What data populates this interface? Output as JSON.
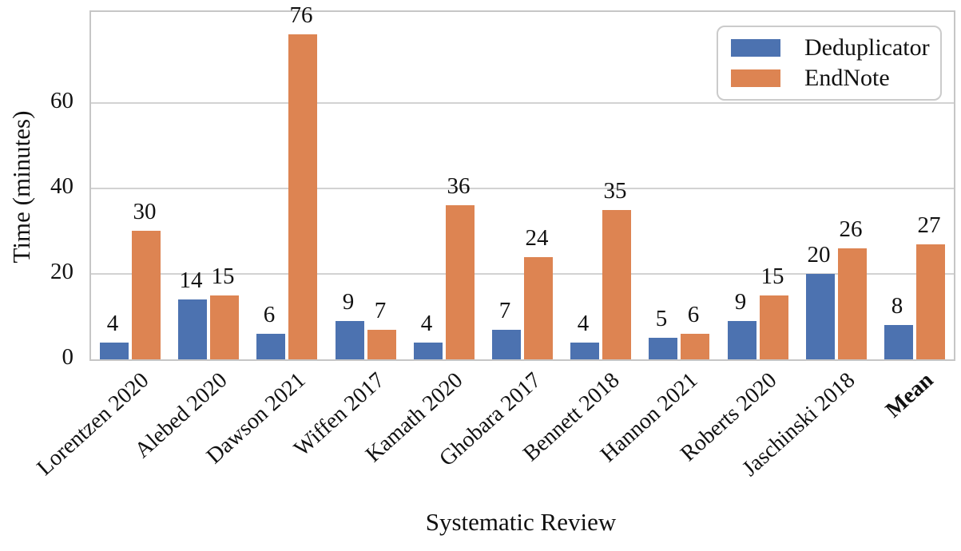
{
  "chart_data": {
    "type": "bar",
    "title": "",
    "xlabel": "Systematic Review",
    "ylabel": "Time (minutes)",
    "categories": [
      "Lorentzen 2020",
      "Alebed 2020",
      "Dawson 2021",
      "Wiffen 2017",
      "Kamath 2020",
      "Ghobara 2017",
      "Bennett 2018",
      "Hannon 2021",
      "Roberts 2020",
      "Jaschinski 2018",
      "Mean"
    ],
    "bold_categories": [
      "Mean"
    ],
    "series": [
      {
        "name": "Deduplicator",
        "color": "#4C72B0",
        "values": [
          4,
          14,
          6,
          9,
          4,
          7,
          4,
          5,
          9,
          20,
          8
        ]
      },
      {
        "name": "EndNote",
        "color": "#DD8452",
        "values": [
          30,
          15,
          76,
          7,
          36,
          24,
          35,
          6,
          15,
          26,
          27
        ]
      }
    ],
    "yticks": [
      0,
      20,
      40,
      60
    ],
    "ylim": [
      0,
      81.3
    ],
    "grid": true,
    "grid_color": "#d2d2d2",
    "axis_border_color": "#c6c6c6",
    "legend_position": "upper right",
    "bar_value_labels_shown": true
  }
}
